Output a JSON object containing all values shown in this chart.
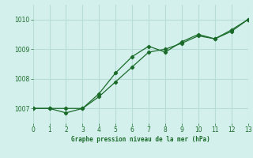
{
  "title": "Graphe pression niveau de la mer (hPa)",
  "background_color": "#d4f0ec",
  "grid_color": "#b8ddd8",
  "line_color": "#1a6b2a",
  "xlim": [
    0,
    13
  ],
  "ylim": [
    1006.5,
    1010.5
  ],
  "yticks": [
    1007,
    1008,
    1009,
    1010
  ],
  "xticks": [
    0,
    1,
    2,
    3,
    4,
    5,
    6,
    7,
    8,
    9,
    10,
    11,
    12,
    13
  ],
  "series1_x": [
    0,
    1,
    2,
    3,
    4,
    5,
    6,
    7,
    8,
    9,
    10,
    11,
    12,
    13
  ],
  "series1_y": [
    1007.0,
    1007.0,
    1006.85,
    1007.0,
    1007.5,
    1008.2,
    1008.75,
    1009.1,
    1008.9,
    1009.25,
    1009.5,
    1009.35,
    1009.65,
    1010.0
  ],
  "series2_x": [
    0,
    1,
    2,
    3,
    4,
    5,
    6,
    7,
    8,
    9,
    10,
    11,
    12,
    13
  ],
  "series2_y": [
    1007.0,
    1007.0,
    1007.0,
    1007.0,
    1007.4,
    1007.9,
    1008.4,
    1008.9,
    1009.0,
    1009.2,
    1009.45,
    1009.35,
    1009.6,
    1010.0
  ]
}
